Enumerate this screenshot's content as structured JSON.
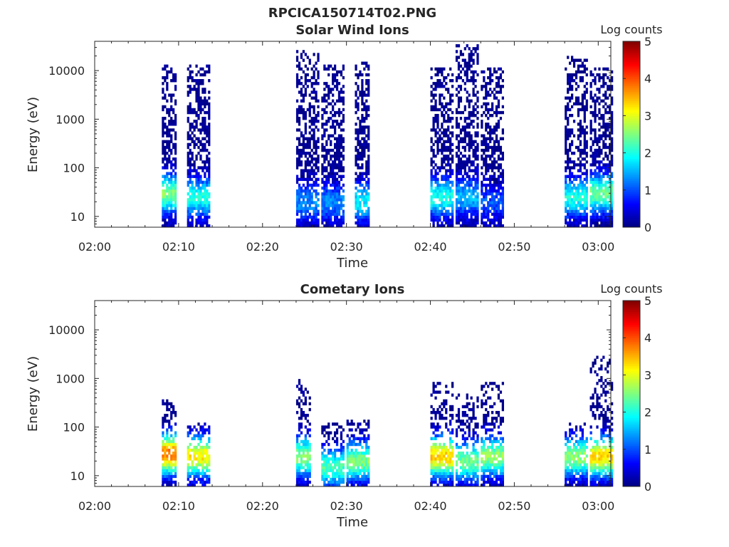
{
  "figure": {
    "title": "RPCICA150714T02.PNG"
  },
  "colors": {
    "background": "#ffffff",
    "axis": "#262626",
    "colormap": [
      "#00007f",
      "#0000ff",
      "#007fff",
      "#00ffff",
      "#7fff7f",
      "#ffff00",
      "#ff7f00",
      "#ff0000",
      "#7f0000"
    ]
  },
  "chart_data": [
    {
      "type": "heatmap",
      "title": "Solar Wind Ions",
      "xlabel": "Time",
      "ylabel": "Energy (eV)",
      "yscale": "log",
      "xlim_minutes_after_02_00": [
        0,
        61.5
      ],
      "ylim": [
        6,
        40000
      ],
      "xticks": [
        "02:00",
        "02:10",
        "02:20",
        "02:30",
        "02:40",
        "02:50",
        "03:00"
      ],
      "yticks": [
        10,
        100,
        1000,
        10000
      ],
      "yticklabels": [
        "10",
        "100",
        "1000",
        "10000"
      ],
      "colorbar": {
        "label": "Log counts",
        "range": [
          0,
          5
        ],
        "ticks": [
          "0",
          "1",
          "2",
          "3",
          "4",
          "5"
        ]
      },
      "bursts": [
        {
          "start": "02:08",
          "end": "02:09",
          "max_energy_eV": 14000,
          "peak_log_counts": 2.5,
          "peak_energy_eV": 30
        },
        {
          "start": "02:11",
          "end": "02:13",
          "max_energy_eV": 14000,
          "peak_log_counts": 2.0,
          "peak_energy_eV": 25
        },
        {
          "start": "02:24",
          "end": "02:26",
          "max_energy_eV": 25000,
          "peak_log_counts": 1.3,
          "peak_energy_eV": 20
        },
        {
          "start": "02:27",
          "end": "02:29",
          "max_energy_eV": 14000,
          "peak_log_counts": 1.3,
          "peak_energy_eV": 20
        },
        {
          "start": "02:31",
          "end": "02:32",
          "max_energy_eV": 16000,
          "peak_log_counts": 1.8,
          "peak_energy_eV": 20
        },
        {
          "start": "02:40",
          "end": "02:42",
          "max_energy_eV": 12000,
          "peak_log_counts": 2.0,
          "peak_energy_eV": 25
        },
        {
          "start": "02:43",
          "end": "02:45",
          "max_energy_eV": 35000,
          "peak_log_counts": 1.5,
          "peak_energy_eV": 25
        },
        {
          "start": "02:46",
          "end": "02:48",
          "max_energy_eV": 12000,
          "peak_log_counts": 1.0,
          "peak_energy_eV": 20
        },
        {
          "start": "02:56",
          "end": "02:58",
          "max_energy_eV": 20000,
          "peak_log_counts": 2.0,
          "peak_energy_eV": 25
        },
        {
          "start": "02:59",
          "end": "03:01",
          "max_energy_eV": 12000,
          "peak_log_counts": 2.4,
          "peak_energy_eV": 30
        }
      ]
    },
    {
      "type": "heatmap",
      "title": "Cometary Ions",
      "xlabel": "Time",
      "ylabel": "Energy (eV)",
      "yscale": "log",
      "xlim_minutes_after_02_00": [
        0,
        61.5
      ],
      "ylim": [
        6,
        40000
      ],
      "xticks": [
        "02:00",
        "02:10",
        "02:20",
        "02:30",
        "02:40",
        "02:50",
        "03:00"
      ],
      "yticks": [
        10,
        100,
        1000,
        10000
      ],
      "yticklabels": [
        "10",
        "100",
        "1000",
        "10000"
      ],
      "colorbar": {
        "label": "Log counts",
        "range": [
          0,
          5
        ],
        "ticks": [
          "0",
          "1",
          "2",
          "3",
          "4",
          "5"
        ]
      },
      "bursts": [
        {
          "start": "02:08",
          "end": "02:09",
          "max_energy_eV": 400,
          "peak_log_counts": 3.8,
          "peak_energy_eV": 28
        },
        {
          "start": "02:11",
          "end": "02:13",
          "max_energy_eV": 120,
          "peak_log_counts": 3.2,
          "peak_energy_eV": 25
        },
        {
          "start": "02:24",
          "end": "02:25",
          "max_energy_eV": 1000,
          "peak_log_counts": 2.6,
          "peak_energy_eV": 25
        },
        {
          "start": "02:27",
          "end": "02:29",
          "max_energy_eV": 130,
          "peak_log_counts": 2.2,
          "peak_energy_eV": 15
        },
        {
          "start": "02:30",
          "end": "02:32",
          "max_energy_eV": 150,
          "peak_log_counts": 2.5,
          "peak_energy_eV": 20
        },
        {
          "start": "02:40",
          "end": "02:42",
          "max_energy_eV": 800,
          "peak_log_counts": 3.4,
          "peak_energy_eV": 25
        },
        {
          "start": "02:43",
          "end": "02:45",
          "max_energy_eV": 500,
          "peak_log_counts": 2.4,
          "peak_energy_eV": 20
        },
        {
          "start": "02:46",
          "end": "02:48",
          "max_energy_eV": 850,
          "peak_log_counts": 2.6,
          "peak_energy_eV": 25
        },
        {
          "start": "02:56",
          "end": "02:58",
          "max_energy_eV": 120,
          "peak_log_counts": 2.6,
          "peak_energy_eV": 25
        },
        {
          "start": "02:59",
          "end": "03:01",
          "max_energy_eV": 3000,
          "peak_log_counts": 3.3,
          "peak_energy_eV": 25
        }
      ]
    }
  ]
}
